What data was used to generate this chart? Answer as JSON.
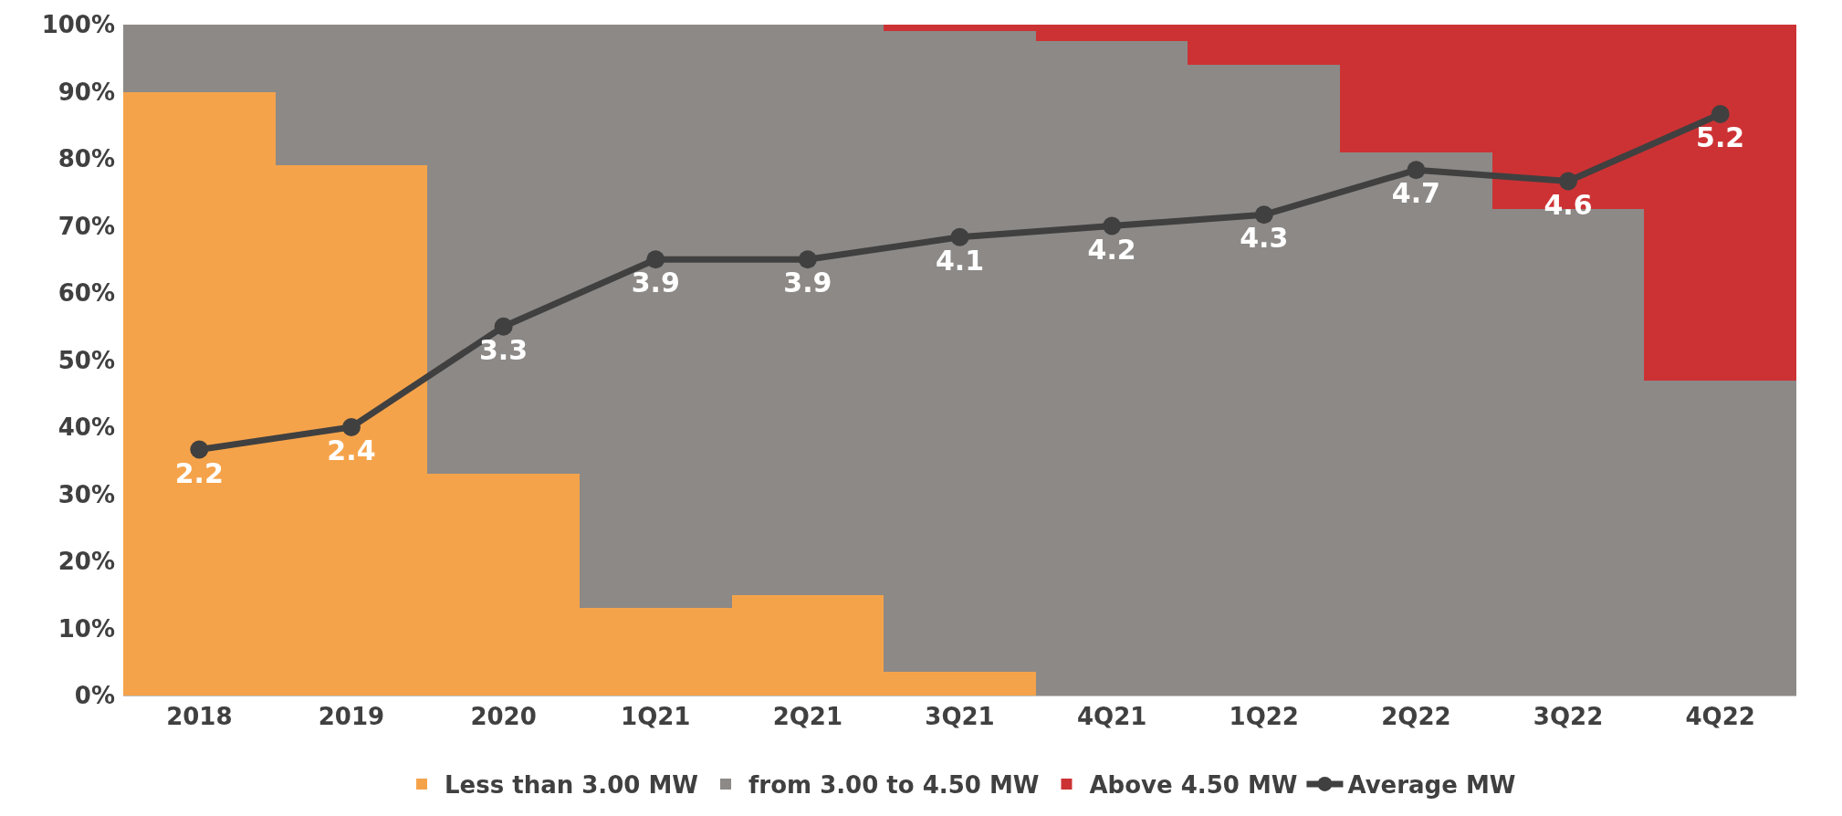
{
  "chart_data": {
    "type": "bar",
    "stacked": true,
    "categories": [
      "2018",
      "2019",
      "2020",
      "1Q21",
      "2Q21",
      "3Q21",
      "4Q21",
      "1Q22",
      "2Q22",
      "3Q22",
      "4Q22"
    ],
    "ylim": [
      0,
      100
    ],
    "yticks": [
      {
        "value": 0,
        "label": "0%"
      },
      {
        "value": 10,
        "label": "10%"
      },
      {
        "value": 20,
        "label": "20%"
      },
      {
        "value": 30,
        "label": "30%"
      },
      {
        "value": 40,
        "label": "40%"
      },
      {
        "value": 50,
        "label": "50%"
      },
      {
        "value": 60,
        "label": "60%"
      },
      {
        "value": 70,
        "label": "70%"
      },
      {
        "value": 80,
        "label": "80%"
      },
      {
        "value": 90,
        "label": "90%"
      },
      {
        "value": 100,
        "label": "100%"
      }
    ],
    "y2lim": [
      0,
      6
    ],
    "legend": "bottom",
    "marker": "circle",
    "series": [
      {
        "name": "Less than 3.00 MW",
        "color": "#f5a34b",
        "values": [
          90,
          79,
          33,
          13,
          15,
          3.5,
          0,
          0,
          0,
          0,
          0
        ]
      },
      {
        "name": "from 3.00 to 4.50 MW",
        "color": "#8c8987",
        "values": [
          10,
          21,
          67,
          87,
          85,
          95.5,
          97.5,
          94,
          81,
          72.5,
          47
        ]
      },
      {
        "name": "Above 4.50 MW",
        "color": "#cc3234",
        "values": [
          0,
          0,
          0,
          0,
          0,
          1,
          2.5,
          6,
          19,
          27.5,
          53
        ]
      },
      {
        "name": "Average MW",
        "type": "line",
        "axis": "y2",
        "color": "#404040",
        "values": [
          2.2,
          2.4,
          3.3,
          3.9,
          3.9,
          4.1,
          4.2,
          4.3,
          4.7,
          4.6,
          5.2
        ],
        "value_labels": [
          "2.2",
          "2.4",
          "3.3",
          "3.9",
          "3.9",
          "4.1",
          "4.2",
          "4.3",
          "4.7",
          "4.6",
          "5.2"
        ]
      }
    ]
  }
}
